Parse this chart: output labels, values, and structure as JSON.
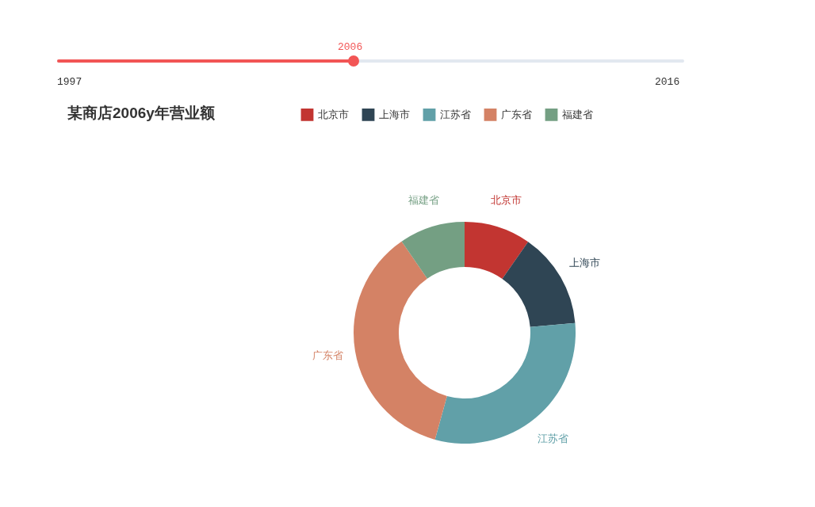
{
  "chart_data": {
    "type": "donut",
    "title": "某商店2006y年营业额",
    "categories": [
      "北京市",
      "上海市",
      "江苏省",
      "广东省",
      "福建省"
    ],
    "values": [
      9.7,
      13.9,
      30.7,
      36.1,
      9.6
    ],
    "colors": [
      "#c23531",
      "#2f4554",
      "#61a0a8",
      "#d48265",
      "#749f83"
    ],
    "legend": "top",
    "annotations": [
      "2006",
      "1997",
      "2016"
    ]
  }
}
